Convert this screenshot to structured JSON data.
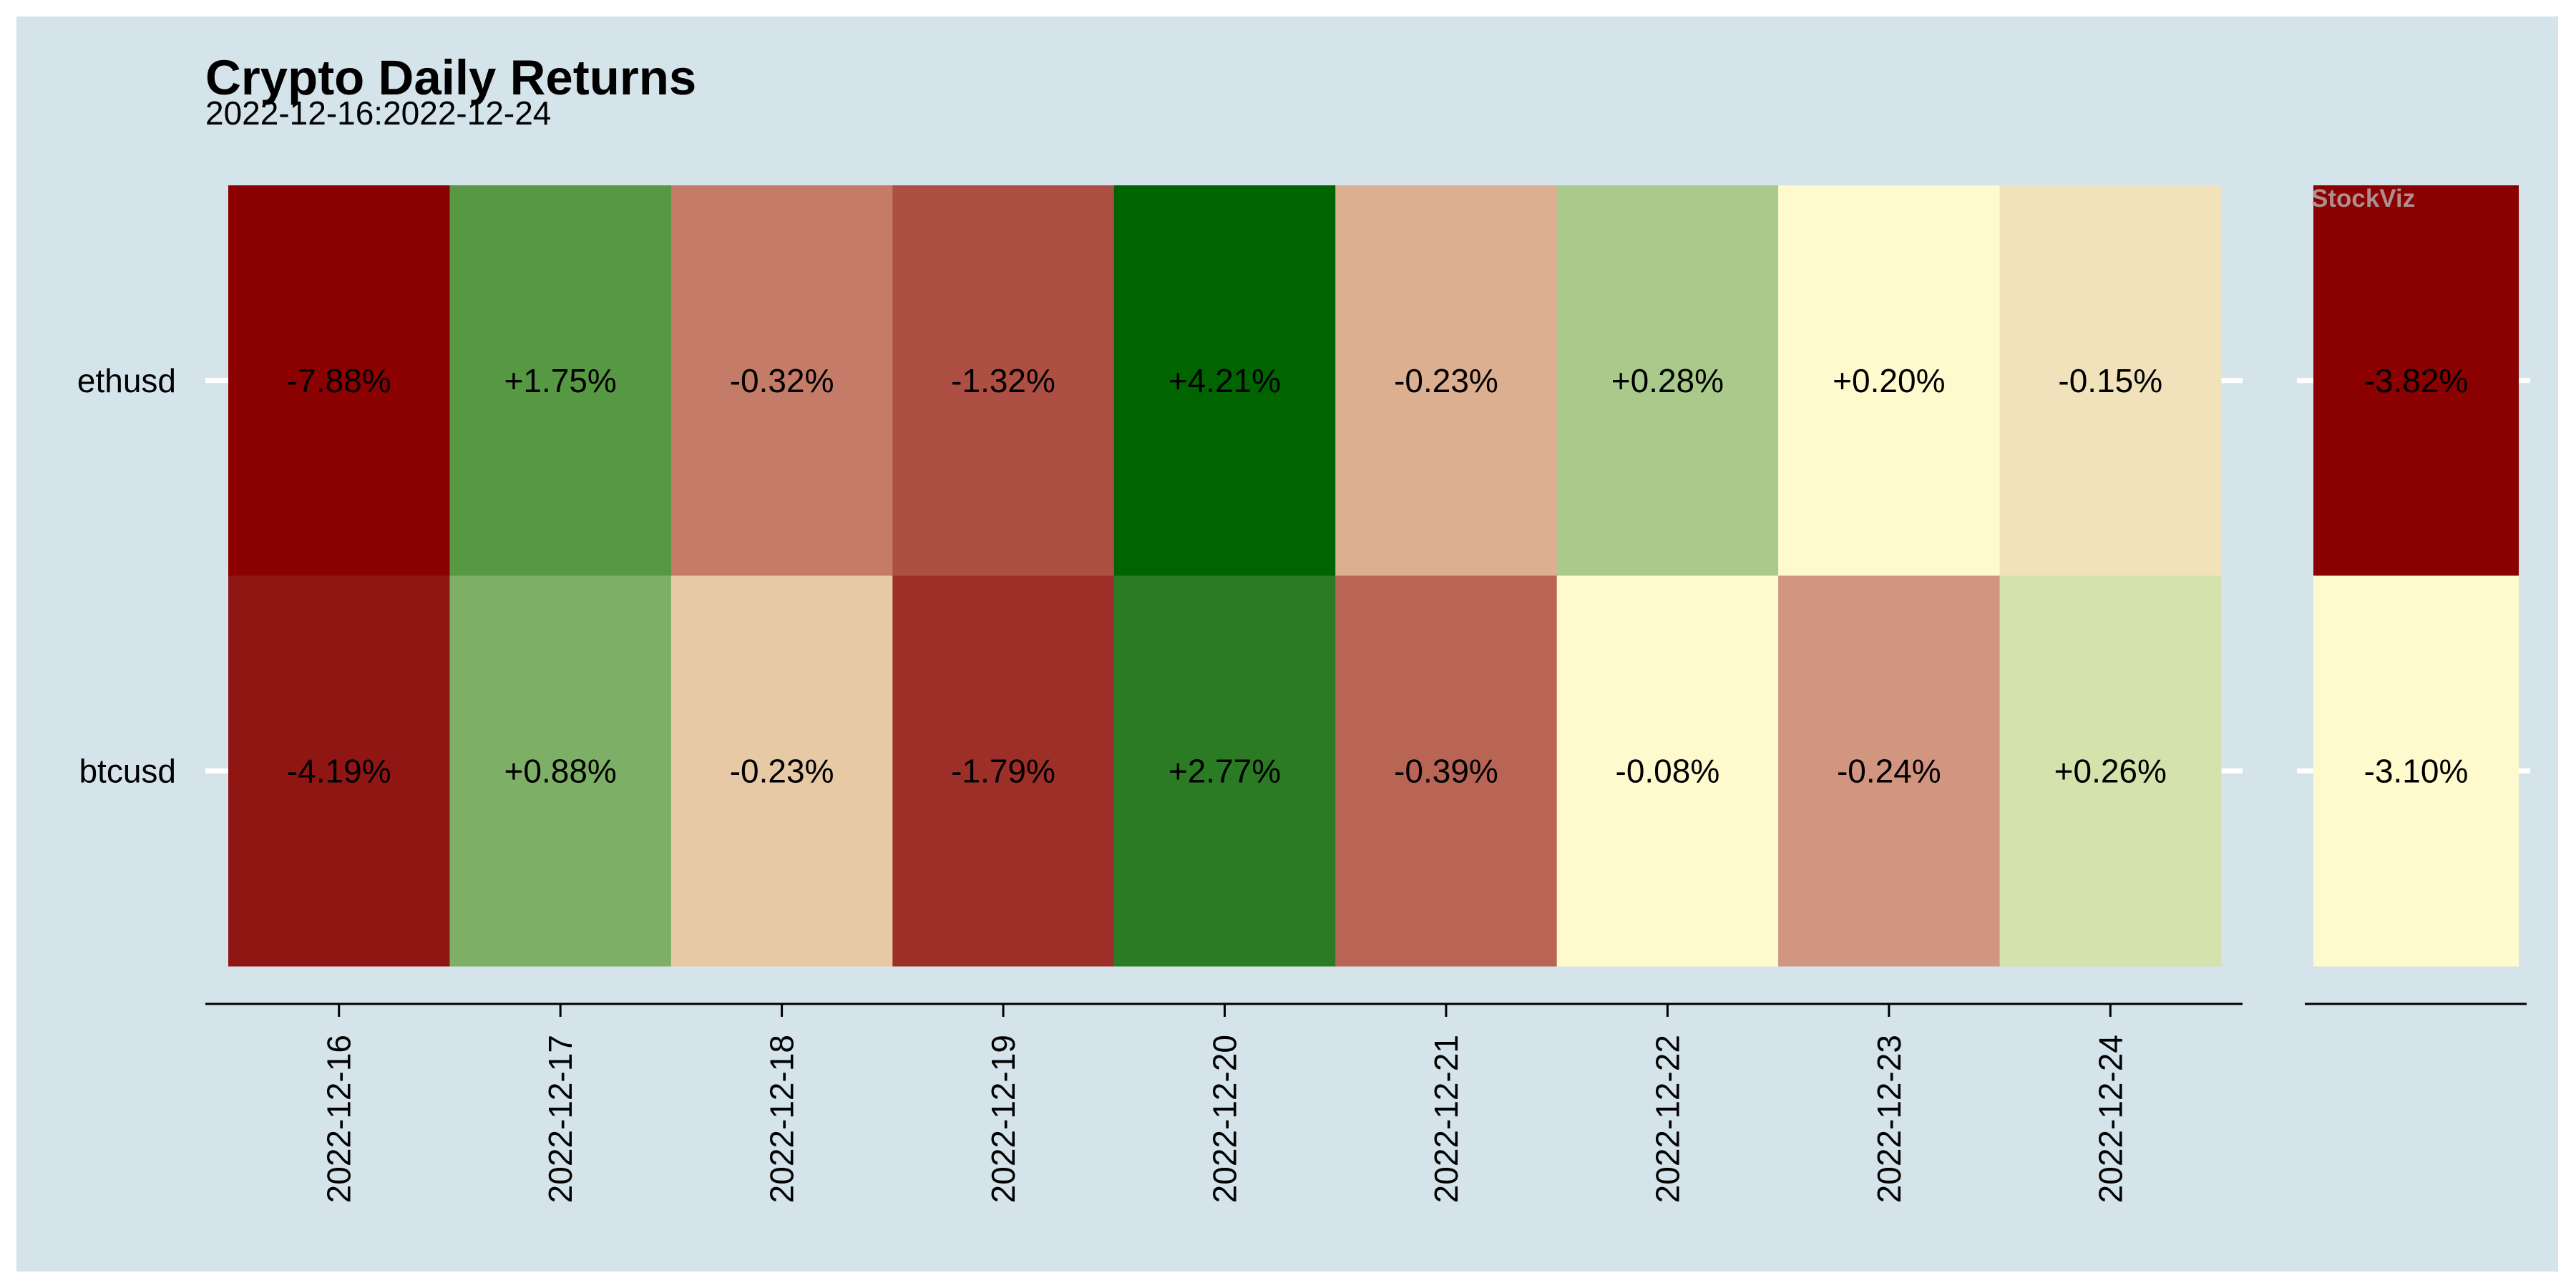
{
  "watermark": "StockViz",
  "chart_data": {
    "type": "heatmap",
    "title": "Crypto Daily Returns",
    "subtitle": "2022-12-16:2022-12-24",
    "rows": [
      "ethusd",
      "btcusd"
    ],
    "columns": [
      "2022-12-16",
      "2022-12-17",
      "2022-12-18",
      "2022-12-19",
      "2022-12-20",
      "2022-12-21",
      "2022-12-22",
      "2022-12-23",
      "2022-12-24"
    ],
    "values": [
      [
        -7.88,
        1.75,
        -0.32,
        -1.32,
        4.21,
        -0.23,
        0.28,
        0.2,
        -0.15
      ],
      [
        -4.19,
        0.88,
        -0.23,
        -1.79,
        2.77,
        -0.39,
        -0.08,
        -0.24,
        0.26
      ]
    ],
    "labels": [
      [
        "-7.88%",
        "+1.75%",
        "-0.32%",
        "-1.32%",
        "+4.21%",
        "-0.23%",
        "+0.28%",
        "+0.20%",
        "-0.15%"
      ],
      [
        "-4.19%",
        "+0.88%",
        "-0.23%",
        "-1.79%",
        "+2.77%",
        "-0.39%",
        "-0.08%",
        "-0.24%",
        "+0.26%"
      ]
    ],
    "colors": [
      [
        "#8b0000",
        "#579843",
        "#c47b67",
        "#ad4f43",
        "#006400",
        "#dcaf90",
        "#a9ca8a",
        "#fffacd",
        "#f1e2bb"
      ],
      [
        "#901614",
        "#7eaf66",
        "#e7c9a6",
        "#9e2f28",
        "#2a7b24",
        "#b86555",
        "#fefacd",
        "#d29580",
        "#d4e2ac"
      ]
    ],
    "total": {
      "values": [
        -3.82,
        -3.1
      ],
      "labels": [
        "-3.82%",
        "-3.10%"
      ],
      "colors": [
        "#8b0000",
        "#fefacd"
      ]
    },
    "grid": true
  }
}
